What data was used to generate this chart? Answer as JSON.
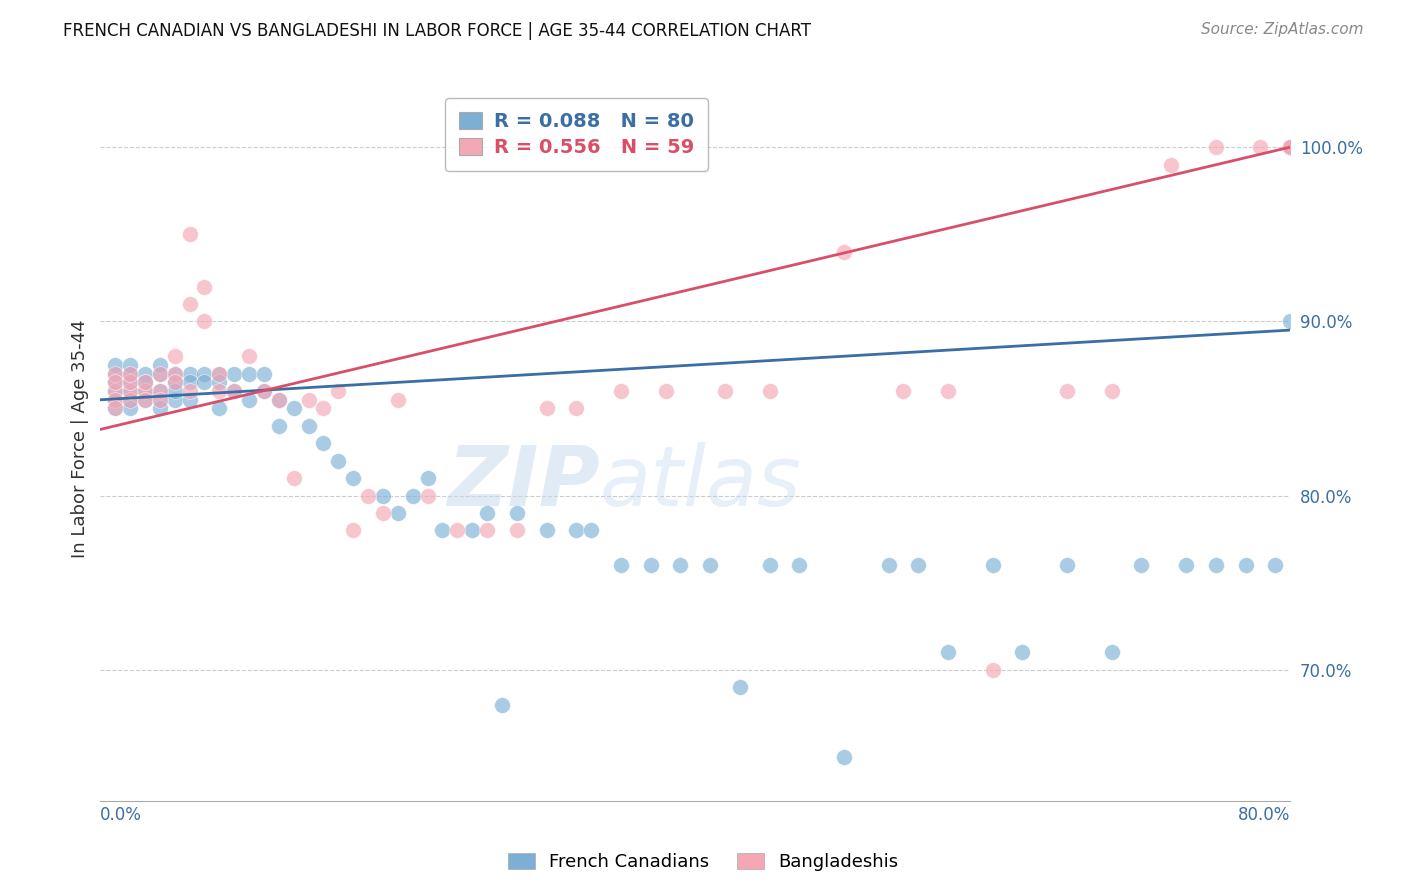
{
  "title": "FRENCH CANADIAN VS BANGLADESHI IN LABOR FORCE | AGE 35-44 CORRELATION CHART",
  "source": "Source: ZipAtlas.com",
  "ylabel": "In Labor Force | Age 35-44",
  "xlim": [
    0.0,
    0.8
  ],
  "ylim": [
    0.625,
    1.04
  ],
  "legend_r_blue": "R = 0.088",
  "legend_n_blue": "N = 80",
  "legend_r_pink": "R = 0.556",
  "legend_n_pink": "N = 59",
  "blue_color": "#7BAFD4",
  "pink_color": "#F4A7B5",
  "blue_line_color": "#3A6EA5",
  "pink_line_color": "#D94F6A",
  "watermark_zip": "ZIP",
  "watermark_atlas": "atlas",
  "french_canadian_x": [
    0.01,
    0.01,
    0.01,
    0.01,
    0.01,
    0.01,
    0.02,
    0.02,
    0.02,
    0.02,
    0.02,
    0.02,
    0.03,
    0.03,
    0.03,
    0.03,
    0.04,
    0.04,
    0.04,
    0.04,
    0.04,
    0.05,
    0.05,
    0.05,
    0.05,
    0.06,
    0.06,
    0.06,
    0.07,
    0.07,
    0.08,
    0.08,
    0.08,
    0.09,
    0.09,
    0.1,
    0.1,
    0.11,
    0.11,
    0.12,
    0.12,
    0.13,
    0.14,
    0.15,
    0.16,
    0.17,
    0.19,
    0.2,
    0.21,
    0.22,
    0.23,
    0.25,
    0.26,
    0.27,
    0.28,
    0.3,
    0.32,
    0.33,
    0.35,
    0.37,
    0.39,
    0.41,
    0.43,
    0.45,
    0.47,
    0.5,
    0.53,
    0.55,
    0.57,
    0.6,
    0.62,
    0.65,
    0.68,
    0.7,
    0.73,
    0.75,
    0.77,
    0.79,
    0.8,
    0.8
  ],
  "french_canadian_y": [
    0.855,
    0.86,
    0.865,
    0.87,
    0.875,
    0.85,
    0.86,
    0.855,
    0.87,
    0.875,
    0.865,
    0.85,
    0.87,
    0.86,
    0.855,
    0.865,
    0.87,
    0.86,
    0.855,
    0.875,
    0.85,
    0.87,
    0.865,
    0.855,
    0.86,
    0.87,
    0.865,
    0.855,
    0.87,
    0.865,
    0.87,
    0.865,
    0.85,
    0.87,
    0.86,
    0.87,
    0.855,
    0.86,
    0.87,
    0.855,
    0.84,
    0.85,
    0.84,
    0.83,
    0.82,
    0.81,
    0.8,
    0.79,
    0.8,
    0.81,
    0.78,
    0.78,
    0.79,
    0.68,
    0.79,
    0.78,
    0.78,
    0.78,
    0.76,
    0.76,
    0.76,
    0.76,
    0.69,
    0.76,
    0.76,
    0.65,
    0.76,
    0.76,
    0.71,
    0.76,
    0.71,
    0.76,
    0.71,
    0.76,
    0.76,
    0.76,
    0.76,
    0.76,
    0.9,
    1.0
  ],
  "bangladeshi_x": [
    0.01,
    0.01,
    0.01,
    0.01,
    0.01,
    0.02,
    0.02,
    0.02,
    0.02,
    0.03,
    0.03,
    0.03,
    0.04,
    0.04,
    0.04,
    0.05,
    0.05,
    0.05,
    0.06,
    0.06,
    0.06,
    0.07,
    0.07,
    0.08,
    0.08,
    0.09,
    0.1,
    0.11,
    0.12,
    0.13,
    0.14,
    0.15,
    0.16,
    0.17,
    0.18,
    0.19,
    0.2,
    0.22,
    0.24,
    0.26,
    0.28,
    0.3,
    0.32,
    0.35,
    0.38,
    0.42,
    0.45,
    0.5,
    0.54,
    0.57,
    0.6,
    0.65,
    0.68,
    0.72,
    0.75,
    0.78,
    0.8,
    0.8,
    0.8
  ],
  "bangladeshi_y": [
    0.86,
    0.855,
    0.87,
    0.85,
    0.865,
    0.855,
    0.86,
    0.865,
    0.87,
    0.86,
    0.865,
    0.855,
    0.87,
    0.86,
    0.855,
    0.87,
    0.88,
    0.865,
    0.95,
    0.91,
    0.86,
    0.92,
    0.9,
    0.87,
    0.86,
    0.86,
    0.88,
    0.86,
    0.855,
    0.81,
    0.855,
    0.85,
    0.86,
    0.78,
    0.8,
    0.79,
    0.855,
    0.8,
    0.78,
    0.78,
    0.78,
    0.85,
    0.85,
    0.86,
    0.86,
    0.86,
    0.86,
    0.94,
    0.86,
    0.86,
    0.7,
    0.86,
    0.86,
    0.99,
    1.0,
    1.0,
    1.0,
    1.0,
    1.0
  ]
}
